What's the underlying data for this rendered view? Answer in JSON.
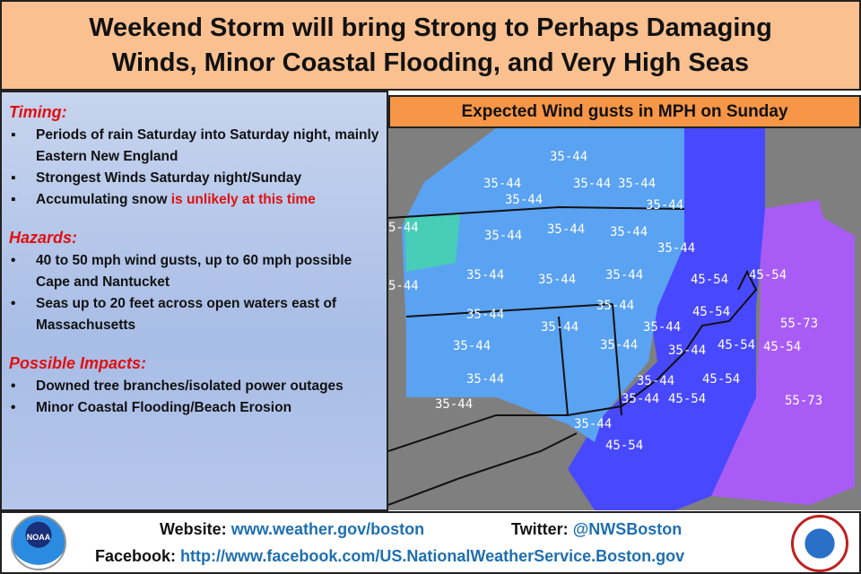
{
  "title": {
    "line1": "Weekend Storm will bring Strong to Perhaps Damaging",
    "line2": "Winds, Minor Coastal Flooding, and Very High Seas"
  },
  "left": {
    "timing": {
      "heading": "Timing:",
      "items": [
        "Periods of rain Saturday into Saturday night, mainly Eastern New England",
        "Strongest Winds Saturday night/Sunday"
      ],
      "snow_prefix": "Accumulating snow ",
      "snow_red": "is unlikely at this time"
    },
    "hazards": {
      "heading": "Hazards:",
      "items": [
        "40 to 50 mph wind gusts, up to 60 mph possible Cape and Nantucket",
        "Seas up to 20 feet across open waters east of Massachusetts"
      ]
    },
    "impacts": {
      "heading": "Possible Impacts:",
      "items": [
        "Downed tree branches/isolated power outages",
        "Minor Coastal Flooding/Beach Erosion"
      ]
    }
  },
  "map": {
    "header": "Expected Wind gusts in MPH on Sunday",
    "colors": {
      "land_gray": "#7f7f7f",
      "zone_35_44": "#5aa2f2",
      "zone_45_54": "#4848ff",
      "zone_55_73": "#a95cf5",
      "green": "#3ee0a0"
    },
    "labels": [
      "35-44",
      "35-44",
      "35-44",
      "35-44",
      "35-44",
      "35-44",
      "5-44",
      "35-44",
      "35-44",
      "35-44",
      "35-44",
      "35-44",
      "35-44",
      "35-44",
      "45-54",
      "45-54",
      "5-44",
      "45-54",
      "35-44",
      "35-44",
      "35-44",
      "35-44",
      "35-44",
      "35-44",
      "35-44",
      "45-54",
      "45-54",
      "55-73",
      "35-44",
      "35-44",
      "45-54",
      "35-44",
      "35-44",
      "45-54",
      "55-73",
      "35-44",
      "45-54"
    ]
  },
  "footer": {
    "website_label": "Website:",
    "website": "www.weather.gov/boston",
    "twitter_label": "Twitter:",
    "twitter": "@NWSBoston",
    "facebook_label": "Facebook:",
    "facebook": "http://www.facebook.com/US.NationalWeatherService.Boston.gov",
    "noaa_logo": "NOAA"
  }
}
